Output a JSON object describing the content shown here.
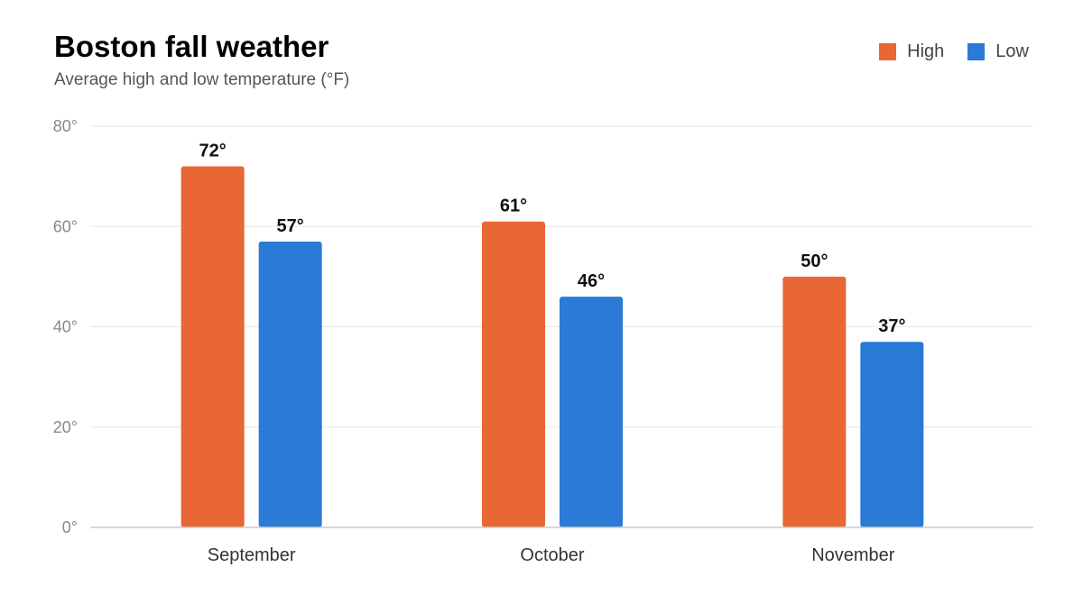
{
  "chart_data": {
    "type": "bar",
    "title": "Boston fall weather",
    "subtitle": "Average high and low temperature (°F)",
    "categories": [
      "September",
      "October",
      "November"
    ],
    "series": [
      {
        "name": "High",
        "values": [
          72,
          61,
          50
        ],
        "color": "#E96735"
      },
      {
        "name": "Low",
        "values": [
          57,
          46,
          37
        ],
        "color": "#2A7AD6"
      }
    ],
    "value_labels": [
      [
        "72°",
        "61°",
        "50°"
      ],
      [
        "57°",
        "46°",
        "37°"
      ]
    ],
    "ylim": [
      0,
      80
    ],
    "yticks": [
      0,
      20,
      40,
      60,
      80
    ],
    "ytick_labels": [
      "0°",
      "20°",
      "40°",
      "60°",
      "80°"
    ],
    "xlabel": "",
    "ylabel": "",
    "grid": true,
    "legend_position": "top-right"
  }
}
